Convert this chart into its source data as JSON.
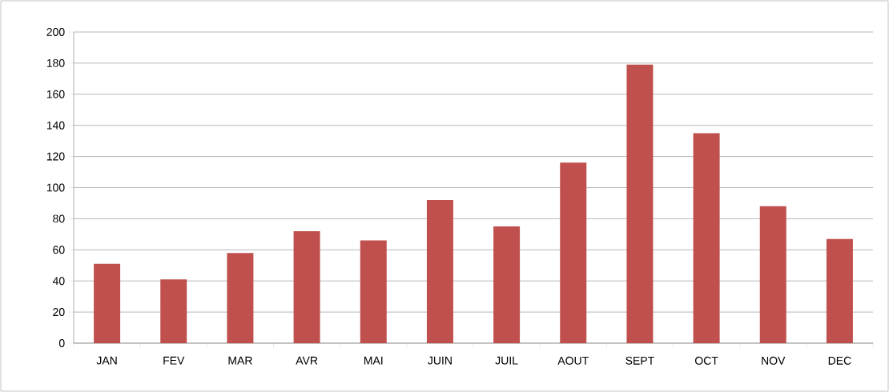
{
  "chart_data": {
    "type": "bar",
    "categories": [
      "JAN",
      "FEV",
      "MAR",
      "AVR",
      "MAI",
      "JUIN",
      "JUIL",
      "AOUT",
      "SEPT",
      "OCT",
      "NOV",
      "DEC"
    ],
    "values": [
      51,
      41,
      58,
      72,
      66,
      92,
      75,
      116,
      179,
      135,
      88,
      67
    ],
    "color": "#c0504d",
    "ylim": [
      0,
      200
    ],
    "yticks": [
      0,
      20,
      40,
      60,
      80,
      100,
      120,
      140,
      160,
      180,
      200
    ],
    "grid": "y"
  }
}
